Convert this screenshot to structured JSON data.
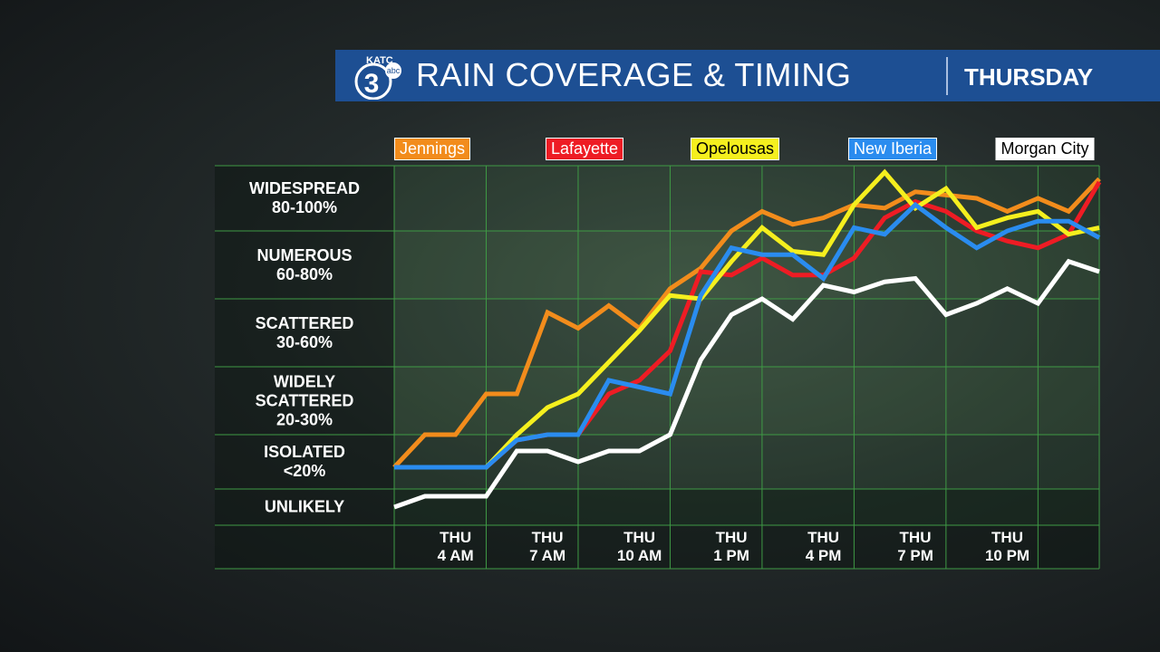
{
  "header": {
    "logo": {
      "call": "KATC",
      "number": "3",
      "network": "abc"
    },
    "title": "RAIN COVERAGE & TIMING",
    "day": "THURSDAY"
  },
  "chart_data": {
    "type": "line",
    "categories": [
      null,
      null,
      "THU\n4 AM",
      null,
      null,
      "THU\n7 AM",
      null,
      null,
      "THU\n10 AM",
      null,
      null,
      "THU\n1 PM",
      null,
      null,
      "THU\n4 PM",
      null,
      null,
      "THU\n7 PM",
      null,
      null,
      "THU\n10 PM",
      null,
      null,
      null
    ],
    "bands": [
      {
        "label": "WIDESPREAD\n80-100%",
        "range": [
          80,
          100
        ]
      },
      {
        "label": "NUMEROUS\n60-80%",
        "range": [
          60,
          80
        ]
      },
      {
        "label": "SCATTERED\n30-60%",
        "range": [
          30,
          60
        ]
      },
      {
        "label": "WIDELY\nSCATTERED\n20-30%",
        "range": [
          20,
          30
        ]
      },
      {
        "label": "ISOLATED\n<20%",
        "range": [
          10,
          20
        ]
      },
      {
        "label": "UNLIKELY",
        "range": [
          0,
          10
        ]
      }
    ],
    "ylim": [
      0,
      100
    ],
    "series": [
      {
        "name": "Jennings",
        "color": "#f28c1c",
        "values": [
          14,
          20,
          20,
          26,
          26,
          54,
          47,
          57,
          47,
          63,
          69,
          80,
          86,
          82,
          84,
          88,
          87,
          92,
          91,
          90,
          86,
          90,
          86,
          96
        ]
      },
      {
        "name": "Lafayette",
        "color": "#ee1c24",
        "values": [
          14,
          14,
          14,
          14,
          19,
          20,
          20,
          26,
          28,
          37,
          68,
          67,
          72,
          67,
          67,
          72,
          84,
          89,
          86,
          80,
          77,
          75,
          79,
          95
        ]
      },
      {
        "name": "Opelousas",
        "color": "#f5ef1e",
        "values": [
          14,
          14,
          14,
          14,
          20,
          24,
          26,
          32,
          46,
          61,
          60,
          71,
          81,
          74,
          73,
          88,
          98,
          87,
          93,
          81,
          84,
          86,
          79,
          81
        ]
      },
      {
        "name": "New Iberia",
        "color": "#2a8cef",
        "values": [
          14,
          14,
          14,
          14,
          19,
          20,
          20,
          28,
          27,
          26,
          61,
          75,
          73,
          73,
          66,
          81,
          79,
          88,
          81,
          75,
          80,
          83,
          83,
          78
        ]
      },
      {
        "name": "Morgan City",
        "color": "#ffffff",
        "values": [
          5,
          8,
          8,
          8,
          17,
          17,
          15,
          17,
          17,
          20,
          33,
          53,
          60,
          51,
          64,
          62,
          65,
          66,
          53,
          58,
          63,
          58,
          71,
          68
        ]
      }
    ]
  }
}
